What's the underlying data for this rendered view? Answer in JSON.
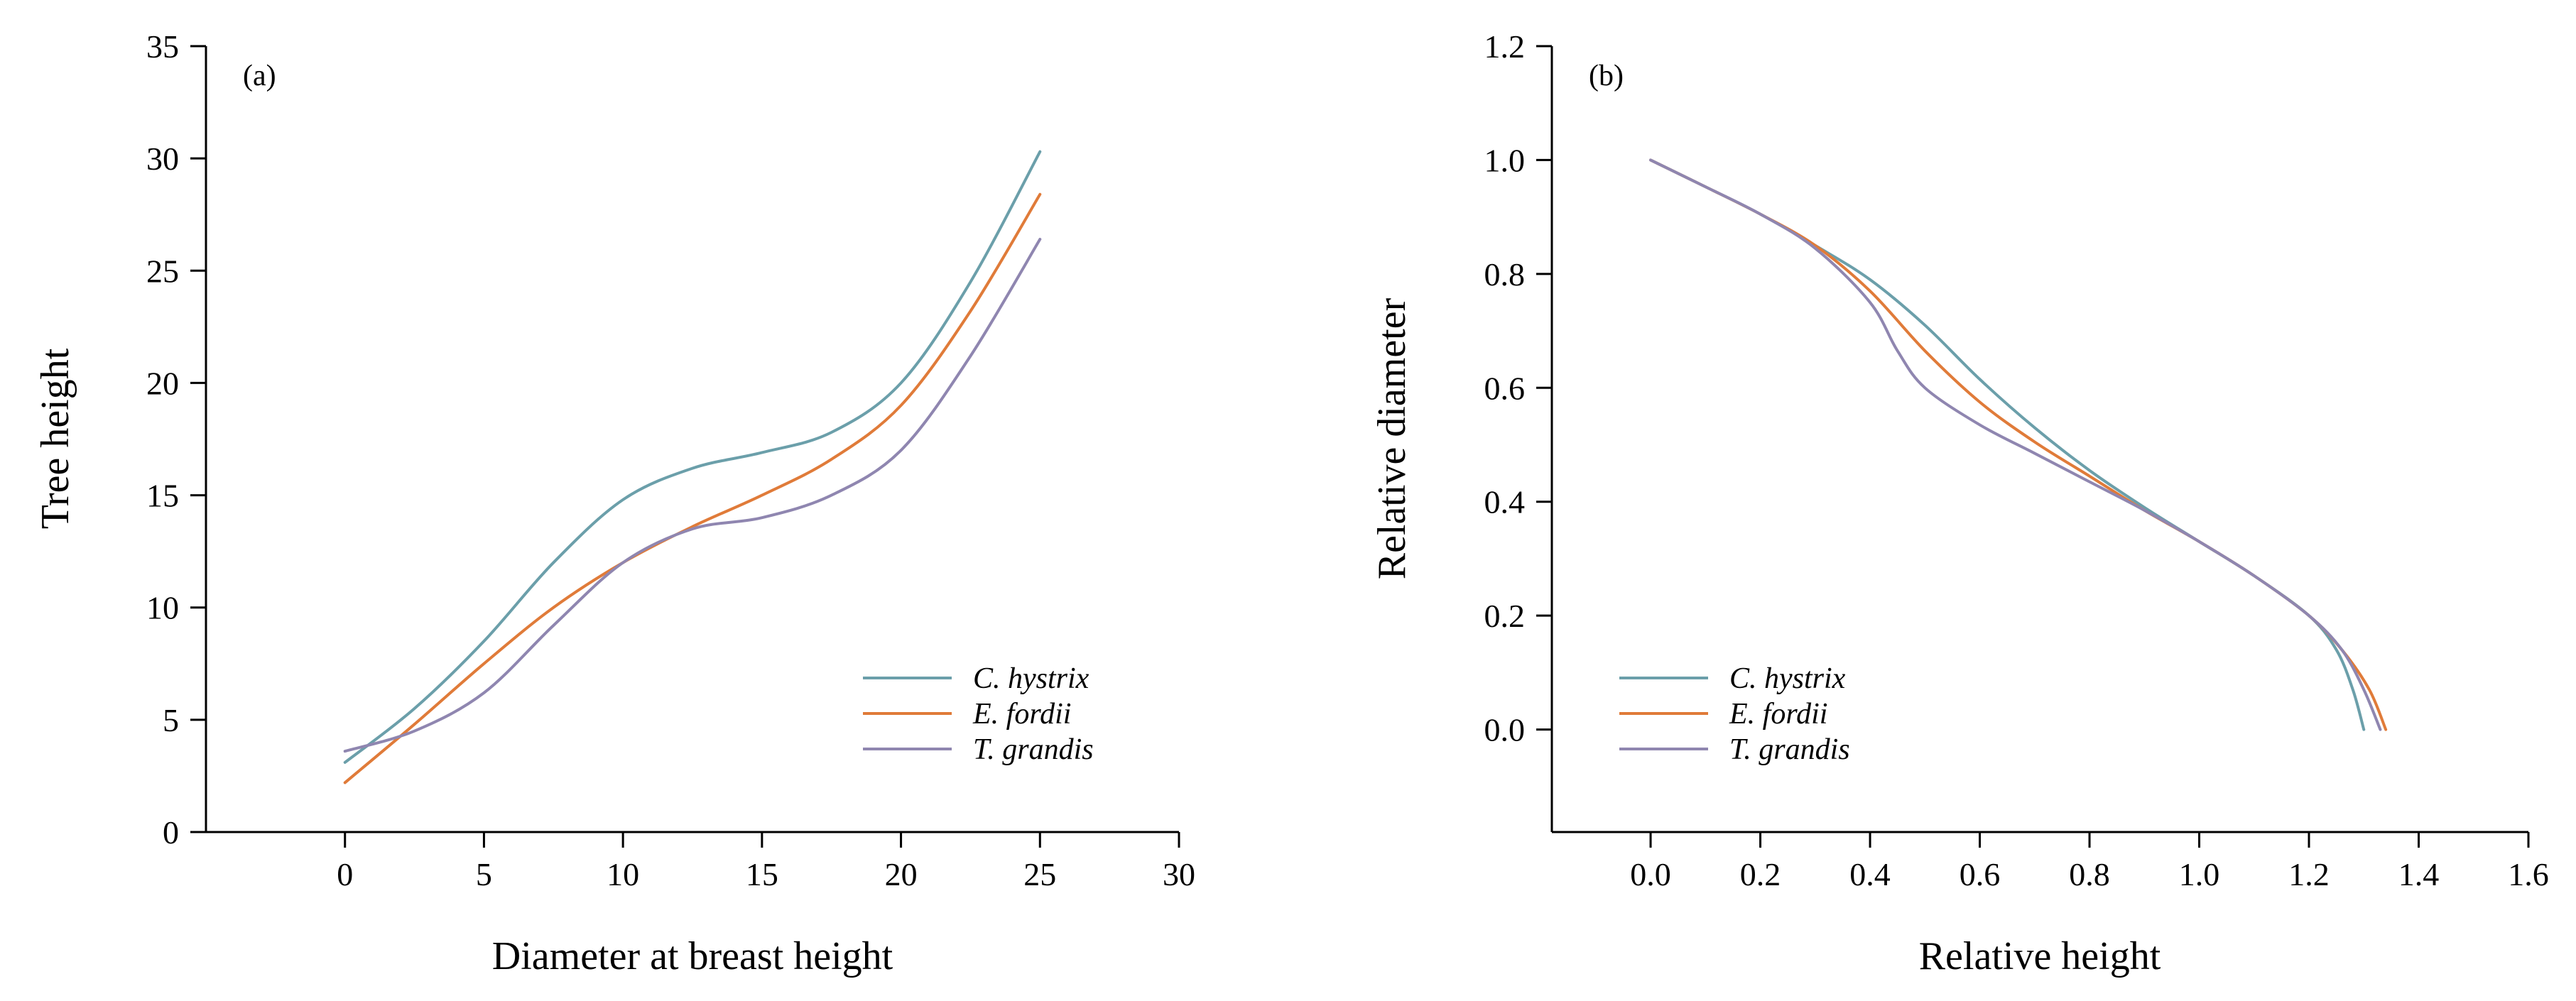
{
  "chart_data": [
    {
      "type": "line",
      "panel_label": "(a)",
      "title": "",
      "xlabel": "Diameter at breast height",
      "ylabel": "Tree height",
      "xlim": [
        -5,
        30
      ],
      "ylim": [
        0,
        35
      ],
      "xticks": [
        0,
        5,
        10,
        15,
        20,
        25,
        30
      ],
      "yticks": [
        0,
        5,
        10,
        15,
        20,
        25,
        30,
        35
      ],
      "legend_position": "bottom-right",
      "series": [
        {
          "name": "C. hystrix",
          "color": "#6b9faa",
          "x": [
            0,
            2.5,
            5,
            7.5,
            10,
            12.5,
            15,
            17.5,
            20,
            22.5,
            25
          ],
          "y": [
            3.1,
            5.5,
            8.5,
            12.0,
            14.8,
            16.2,
            16.9,
            17.8,
            20.0,
            24.5,
            30.3
          ]
        },
        {
          "name": "E. fordii",
          "color": "#e07b39",
          "x": [
            0,
            2.5,
            5,
            7.5,
            10,
            12.5,
            15,
            17.5,
            20,
            22.5,
            25
          ],
          "y": [
            2.2,
            4.8,
            7.5,
            10.0,
            12.0,
            13.6,
            15.0,
            16.6,
            19.0,
            23.2,
            28.4
          ]
        },
        {
          "name": "T. grandis",
          "color": "#8f86b0",
          "x": [
            0,
            2.5,
            5,
            7.5,
            10,
            12.5,
            15,
            17.5,
            20,
            22.5,
            25
          ],
          "y": [
            3.6,
            4.5,
            6.2,
            9.2,
            12.0,
            13.5,
            14.0,
            15.0,
            17.0,
            21.2,
            26.4
          ]
        }
      ]
    },
    {
      "type": "line",
      "panel_label": "(b)",
      "title": "",
      "xlabel": "Relative height",
      "ylabel": "Relative diameter",
      "xlim": [
        -0.18,
        1.6
      ],
      "ylim": [
        -0.18,
        1.2
      ],
      "xticks": [
        "0.0",
        "0.2",
        "0.4",
        "0.6",
        "0.8",
        "1.0",
        "1.2",
        "1.4",
        "1.6"
      ],
      "yticks": [
        "0.0",
        "0.2",
        "0.4",
        "0.6",
        "0.8",
        "1.0",
        "1.2"
      ],
      "legend_position": "bottom-left",
      "series": [
        {
          "name": "C. hystrix",
          "color": "#6b9faa",
          "x": [
            0.0,
            0.1,
            0.2,
            0.3,
            0.4,
            0.5,
            0.6,
            0.7,
            0.8,
            0.9,
            1.0,
            1.1,
            1.2,
            1.25,
            1.28,
            1.3
          ],
          "y": [
            1.0,
            0.953,
            0.905,
            0.85,
            0.79,
            0.71,
            0.615,
            0.53,
            0.455,
            0.39,
            0.33,
            0.27,
            0.2,
            0.14,
            0.07,
            0.0
          ]
        },
        {
          "name": "E. fordii",
          "color": "#e07b39",
          "x": [
            0.0,
            0.1,
            0.2,
            0.3,
            0.4,
            0.5,
            0.6,
            0.7,
            0.8,
            0.9,
            1.0,
            1.1,
            1.2,
            1.26,
            1.31,
            1.34
          ],
          "y": [
            1.0,
            0.953,
            0.905,
            0.85,
            0.77,
            0.665,
            0.575,
            0.505,
            0.445,
            0.385,
            0.33,
            0.27,
            0.2,
            0.14,
            0.07,
            0.0
          ]
        },
        {
          "name": "T. grandis",
          "color": "#8f86b0",
          "x": [
            0.0,
            0.1,
            0.2,
            0.3,
            0.4,
            0.45,
            0.5,
            0.6,
            0.7,
            0.8,
            0.9,
            1.0,
            1.1,
            1.2,
            1.26,
            1.3,
            1.33
          ],
          "y": [
            1.0,
            0.953,
            0.905,
            0.845,
            0.75,
            0.665,
            0.6,
            0.535,
            0.485,
            0.435,
            0.385,
            0.33,
            0.27,
            0.2,
            0.14,
            0.07,
            0.0
          ]
        }
      ]
    }
  ]
}
